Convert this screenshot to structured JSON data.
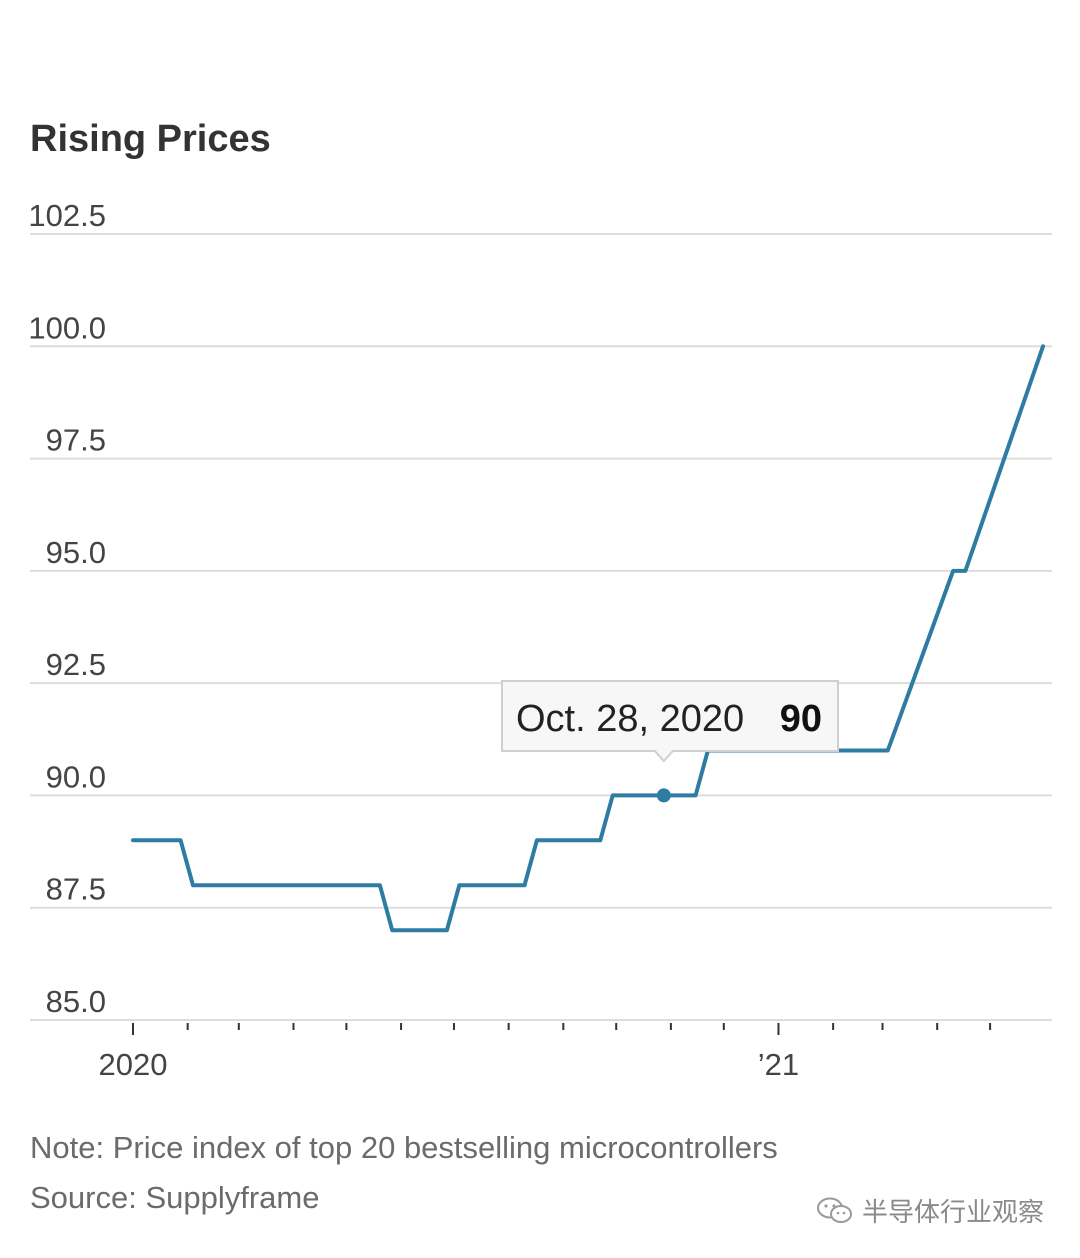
{
  "chart_data": {
    "type": "line",
    "title": "Rising Prices",
    "ylim": [
      85.0,
      102.5
    ],
    "yticks": [
      "102.5",
      "100.0",
      "97.5",
      "95.0",
      "92.5",
      "90.0",
      "87.5",
      "85.0"
    ],
    "ytick_values": [
      102.5,
      100.0,
      97.5,
      95.0,
      92.5,
      90.0,
      87.5,
      85.0
    ],
    "xlim": [
      "2020-01-01",
      "2021-05-31"
    ],
    "xtick_labels": [
      {
        "label": "2020",
        "date": "2020-01-01"
      },
      {
        "label": "’21",
        "date": "2021-01-01"
      }
    ],
    "minor_ticks": [
      "2020-02-01",
      "2020-03-01",
      "2020-04-01",
      "2020-05-01",
      "2020-06-01",
      "2020-07-01",
      "2020-08-01",
      "2020-09-01",
      "2020-10-01",
      "2020-11-01",
      "2020-12-01",
      "2021-02-01",
      "2021-03-01",
      "2021-04-01",
      "2021-05-01"
    ],
    "grid": true,
    "series": [
      {
        "color": "#2e7ba3",
        "points": [
          [
            "2020-01-01",
            89
          ],
          [
            "2020-01-28",
            89
          ],
          [
            "2020-02-04",
            88
          ],
          [
            "2020-05-20",
            88
          ],
          [
            "2020-05-27",
            87
          ],
          [
            "2020-06-27",
            87
          ],
          [
            "2020-07-04",
            88
          ],
          [
            "2020-08-10",
            88
          ],
          [
            "2020-08-17",
            89
          ],
          [
            "2020-09-22",
            89
          ],
          [
            "2020-09-29",
            90
          ],
          [
            "2020-11-15",
            90
          ],
          [
            "2020-11-22",
            91
          ],
          [
            "2021-03-04",
            91
          ],
          [
            "2021-04-10",
            95
          ],
          [
            "2021-04-17",
            95
          ],
          [
            "2021-05-31",
            100
          ]
        ]
      }
    ],
    "highlight": {
      "date": "2020-10-28",
      "label": "Oct. 28, 2020",
      "value": "90"
    }
  },
  "note": "Note: Price index of top 20 bestselling microcontrollers",
  "source": "Source: Supplyframe",
  "watermark": {
    "text": "半导体行业观察",
    "icon": "wechat-icon"
  }
}
